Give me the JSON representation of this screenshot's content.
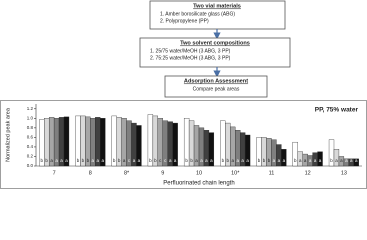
{
  "diagram": {
    "boxes": [
      {
        "title": "Two vial materials",
        "items": [
          "1.  Amber borosilicate glass (ABG)",
          "2.  Polypropylene (PP)"
        ]
      },
      {
        "title": "Two solvent compositions",
        "items": [
          "1.  25/75 water/MeOH (3 ABG, 3 PP)",
          "2.  75:25 water/MeOH (3 ABG, 3 PP)"
        ]
      },
      {
        "title": "Adsorption Assessment",
        "items": [
          "Compare peak areas"
        ]
      }
    ]
  },
  "chart_data": {
    "type": "bar",
    "annotation": "PP, 75% water",
    "xlabel": "Perfluorinated chain length",
    "ylabel": "Normalized peak area",
    "categories": [
      "7",
      "8",
      "8*",
      "9",
      "10",
      "10*",
      "11",
      "12",
      "13"
    ],
    "ylim": [
      0,
      1.3
    ],
    "yticks": [
      {
        "value": 0,
        "label": "0.0"
      },
      0.2,
      0.4,
      0.6,
      0.8,
      {
        "value": 1,
        "label": "1.0"
      },
      1.2
    ],
    "series": [
      {
        "color": "#ffffff",
        "values": [
          0.97,
          1.05,
          1.05,
          1.08,
          1.0,
          0.95,
          0.6,
          0.5,
          0.55
        ],
        "letters": [
          "b",
          "b",
          "b",
          "b",
          "b",
          "b",
          "b",
          "b",
          "b"
        ]
      },
      {
        "color": "#d9d9d9",
        "values": [
          1.0,
          1.05,
          1.02,
          1.05,
          0.95,
          0.9,
          0.6,
          0.3,
          0.35
        ],
        "letters": [
          "b",
          "b",
          "b",
          "b",
          "b",
          "b",
          "b",
          "a",
          "a"
        ]
      },
      {
        "color": "#a6a6a6",
        "values": [
          1.02,
          1.03,
          1.0,
          1.0,
          0.85,
          0.82,
          0.58,
          0.25,
          0.2
        ],
        "letters": [
          "a",
          "b",
          "a",
          "c",
          "a",
          "a",
          "b",
          "a",
          "a"
        ]
      },
      {
        "color": "#7f7f7f",
        "values": [
          1.0,
          1.0,
          0.95,
          0.95,
          0.8,
          0.75,
          0.55,
          0.22,
          0.15
        ],
        "letters": [
          "a",
          "a",
          "c",
          "c",
          "a",
          "a",
          "a",
          "a",
          "a"
        ]
      },
      {
        "color": "#404040",
        "values": [
          1.02,
          1.02,
          0.9,
          0.93,
          0.75,
          0.7,
          0.45,
          0.28,
          0.15
        ],
        "letters": [
          "a",
          "a",
          "a",
          "a",
          "a",
          "a",
          "a",
          "a",
          "a"
        ]
      },
      {
        "color": "#111111",
        "values": [
          1.03,
          1.0,
          0.85,
          0.9,
          0.7,
          0.65,
          0.35,
          0.3,
          0.15
        ],
        "letters": [
          "a",
          "a",
          "a",
          "a",
          "a",
          "a",
          "a",
          "a",
          "a"
        ]
      }
    ]
  }
}
